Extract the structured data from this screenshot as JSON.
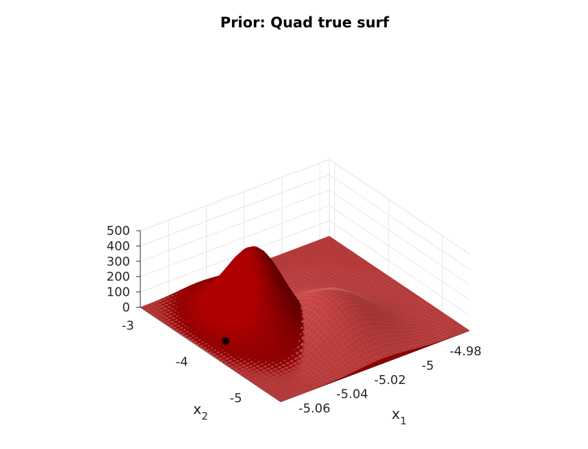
{
  "chart_data": {
    "type": "surface",
    "title": "Prior: Quad true surf",
    "xlabel": "x",
    "xlabel_subscript": "1",
    "ylabel": "x",
    "ylabel_subscript": "2",
    "zlabel": "",
    "x_ticks": [
      "-5.06",
      "-5.04",
      "-5.02",
      "-5",
      "-4.98"
    ],
    "y_ticks": [
      "-3",
      "-4",
      "-5"
    ],
    "z_ticks": [
      "0",
      "100",
      "200",
      "300",
      "400",
      "500"
    ],
    "z_tick_values": [
      0,
      100,
      200,
      300,
      400,
      500
    ],
    "xlim": [
      -5.075,
      -4.975
    ],
    "ylim": [
      -5.5,
      -2.9
    ],
    "zlim": [
      0,
      500
    ],
    "grid": true,
    "surfaces": [
      {
        "name": "",
        "color": "#8b0000",
        "opacity": 1.0,
        "peak": {
          "x": -5.044,
          "y": -3.95,
          "z": 490
        },
        "sigma_x": 0.0105,
        "sigma_y": 0.42
      },
      {
        "name": "",
        "color": "#d06060",
        "opacity": 0.6,
        "peak": {
          "x": -5.02,
          "y": -4.6,
          "z": 240
        },
        "sigma_x": 0.014,
        "sigma_y": 0.45
      }
    ],
    "points": [
      {
        "x": -5.063,
        "y": -4.06,
        "z": 0,
        "marker": "*",
        "color": "#000000"
      }
    ]
  }
}
